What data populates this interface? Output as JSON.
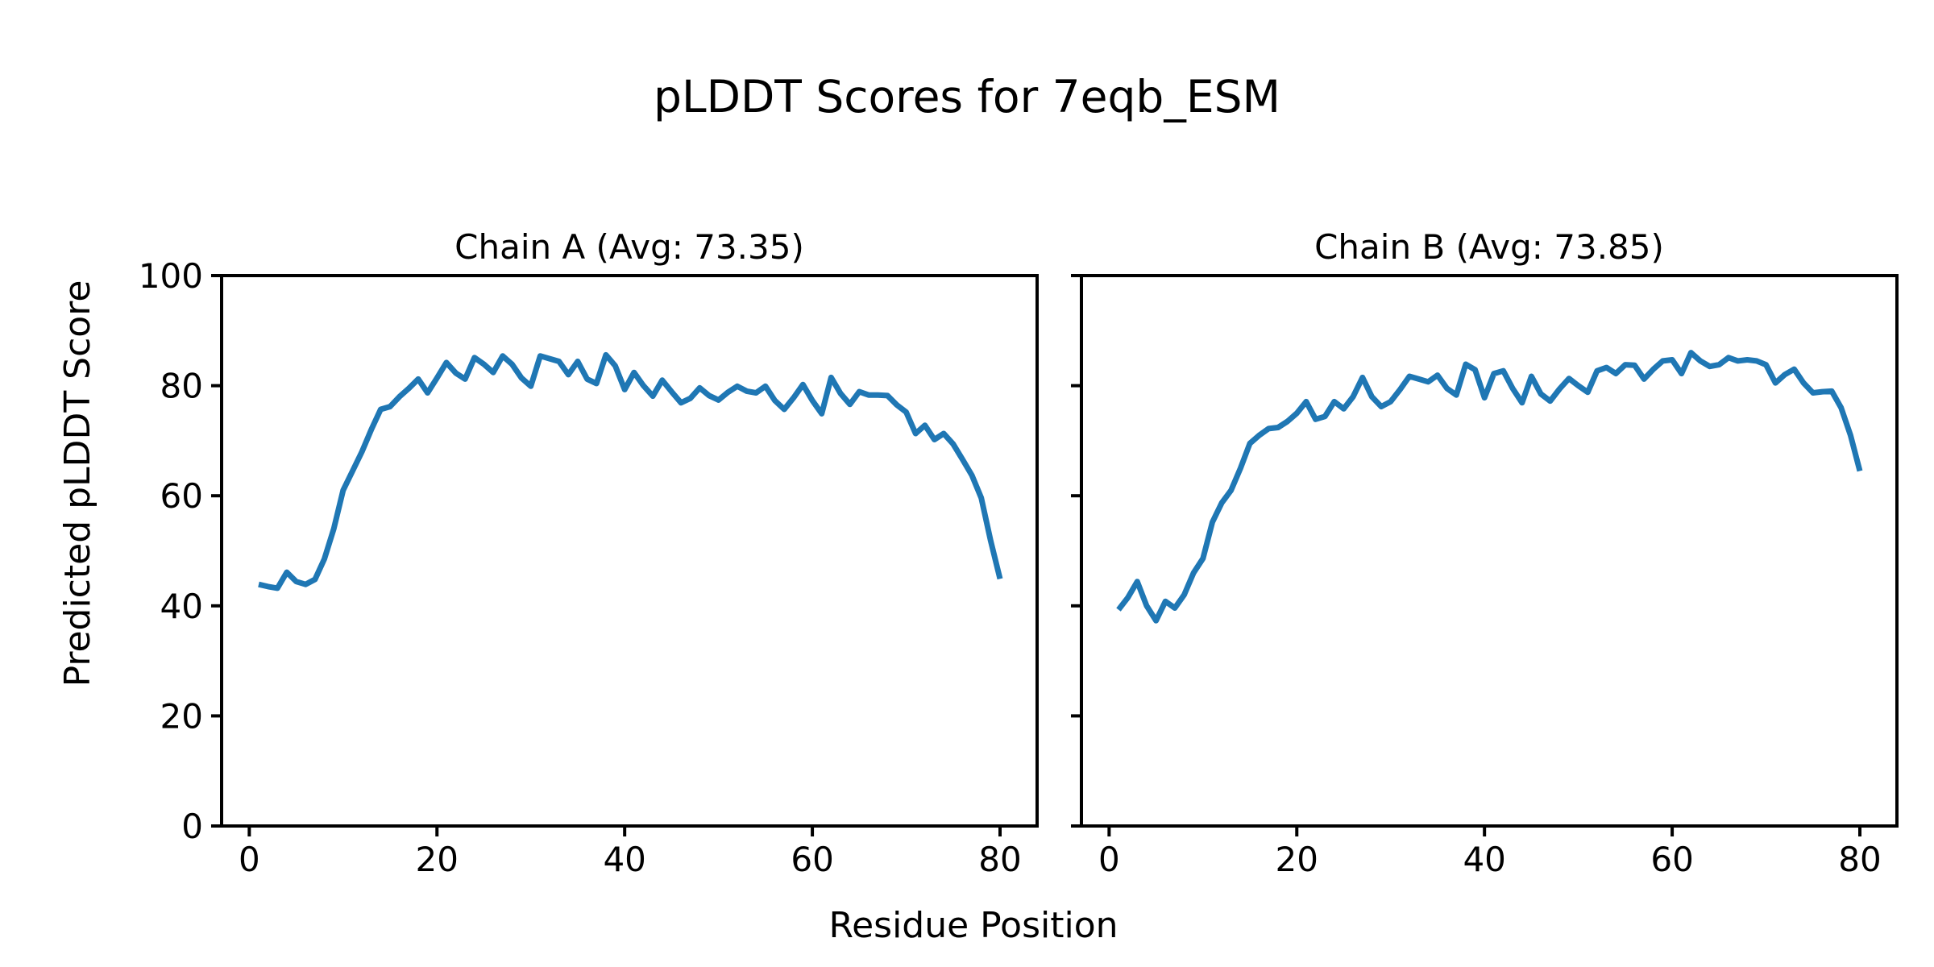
{
  "figure": {
    "title": "pLDDT Scores for 7eqb_ESM",
    "xlabel": "Residue Position",
    "ylabel": "Predicted pLDDT Score",
    "background_color": "#ffffff",
    "line_color": "#1f77b4",
    "axis_color": "#000000"
  },
  "chart_data": [
    {
      "type": "line",
      "name": "Chain A",
      "title": "Chain A (Avg: 73.35)",
      "average": 73.35,
      "line_color": "#1f77b4",
      "xlim": [
        -2.95,
        83.95
      ],
      "ylim": [
        0,
        100
      ],
      "xticks": [
        0,
        20,
        40,
        60,
        80
      ],
      "yticks": [
        0,
        20,
        40,
        60,
        80,
        100
      ],
      "show_ytick_labels": true,
      "grid": false,
      "x": [
        1,
        2,
        3,
        4,
        5,
        6,
        7,
        8,
        9,
        10,
        11,
        12,
        13,
        14,
        15,
        16,
        17,
        18,
        19,
        20,
        21,
        22,
        23,
        24,
        25,
        26,
        27,
        28,
        29,
        30,
        31,
        32,
        33,
        34,
        35,
        36,
        37,
        38,
        39,
        40,
        41,
        42,
        43,
        44,
        45,
        46,
        47,
        48,
        49,
        50,
        51,
        52,
        53,
        54,
        55,
        56,
        57,
        58,
        59,
        60,
        61,
        62,
        63,
        64,
        65,
        66,
        67,
        68,
        69,
        70,
        71,
        72,
        73,
        74,
        75,
        76,
        77,
        78,
        79,
        80
      ],
      "values": [
        43.9,
        43.5,
        43.2,
        46.1,
        44.4,
        43.9,
        44.8,
        48.5,
        54.0,
        61.0,
        64.5,
        68.0,
        72.0,
        75.7,
        76.2,
        78.0,
        79.5,
        81.2,
        78.7,
        81.4,
        84.2,
        82.3,
        81.2,
        85.1,
        83.9,
        82.4,
        85.4,
        83.9,
        81.4,
        79.9,
        85.4,
        84.9,
        84.4,
        82.0,
        84.4,
        81.2,
        80.4,
        85.6,
        83.6,
        79.3,
        82.4,
        80.0,
        78.1,
        81.0,
        78.9,
        76.9,
        77.7,
        79.6,
        78.2,
        77.4,
        78.8,
        79.9,
        79.0,
        78.7,
        79.9,
        77.3,
        75.7,
        77.8,
        80.2,
        77.3,
        74.9,
        81.5,
        78.6,
        76.6,
        78.9,
        78.3,
        78.3,
        78.2,
        76.5,
        75.2,
        71.3,
        72.8,
        70.2,
        71.3,
        69.4,
        66.6,
        63.7,
        59.6,
        51.8,
        44.9
      ]
    },
    {
      "type": "line",
      "name": "Chain B",
      "title": "Chain B (Avg: 73.85)",
      "average": 73.85,
      "line_color": "#1f77b4",
      "xlim": [
        -2.95,
        83.95
      ],
      "ylim": [
        0,
        100
      ],
      "xticks": [
        0,
        20,
        40,
        60,
        80
      ],
      "yticks": [
        0,
        20,
        40,
        60,
        80,
        100
      ],
      "show_ytick_labels": false,
      "grid": false,
      "x": [
        1,
        2,
        3,
        4,
        5,
        6,
        7,
        8,
        9,
        10,
        11,
        12,
        13,
        14,
        15,
        16,
        17,
        18,
        19,
        20,
        21,
        22,
        23,
        24,
        25,
        26,
        27,
        28,
        29,
        30,
        31,
        32,
        33,
        34,
        35,
        36,
        37,
        38,
        39,
        40,
        41,
        42,
        43,
        44,
        45,
        46,
        47,
        48,
        49,
        50,
        51,
        52,
        53,
        54,
        55,
        56,
        57,
        58,
        59,
        60,
        61,
        62,
        63,
        64,
        65,
        66,
        67,
        68,
        69,
        70,
        71,
        72,
        73,
        74,
        75,
        76,
        77,
        78,
        79,
        80
      ],
      "values": [
        39.3,
        41.5,
        44.4,
        40.0,
        37.3,
        40.8,
        39.6,
        42.0,
        46.0,
        48.6,
        55.2,
        58.7,
        61.0,
        65.0,
        69.5,
        71.0,
        72.2,
        72.4,
        73.5,
        75.0,
        77.1,
        73.9,
        74.4,
        77.1,
        75.8,
        78.0,
        81.5,
        78.0,
        76.2,
        77.1,
        79.3,
        81.7,
        81.2,
        80.7,
        81.9,
        79.5,
        78.3,
        83.9,
        82.9,
        77.8,
        82.2,
        82.7,
        79.5,
        76.9,
        81.7,
        78.5,
        77.2,
        79.4,
        81.3,
        80.0,
        78.8,
        82.7,
        83.3,
        82.2,
        83.8,
        83.7,
        81.2,
        83.0,
        84.5,
        84.7,
        82.2,
        86.0,
        84.5,
        83.5,
        83.8,
        85.1,
        84.5,
        84.7,
        84.5,
        83.8,
        80.5,
        82.0,
        83.0,
        80.5,
        78.7,
        78.9,
        79.0,
        76.0,
        71.0,
        64.5
      ]
    }
  ]
}
